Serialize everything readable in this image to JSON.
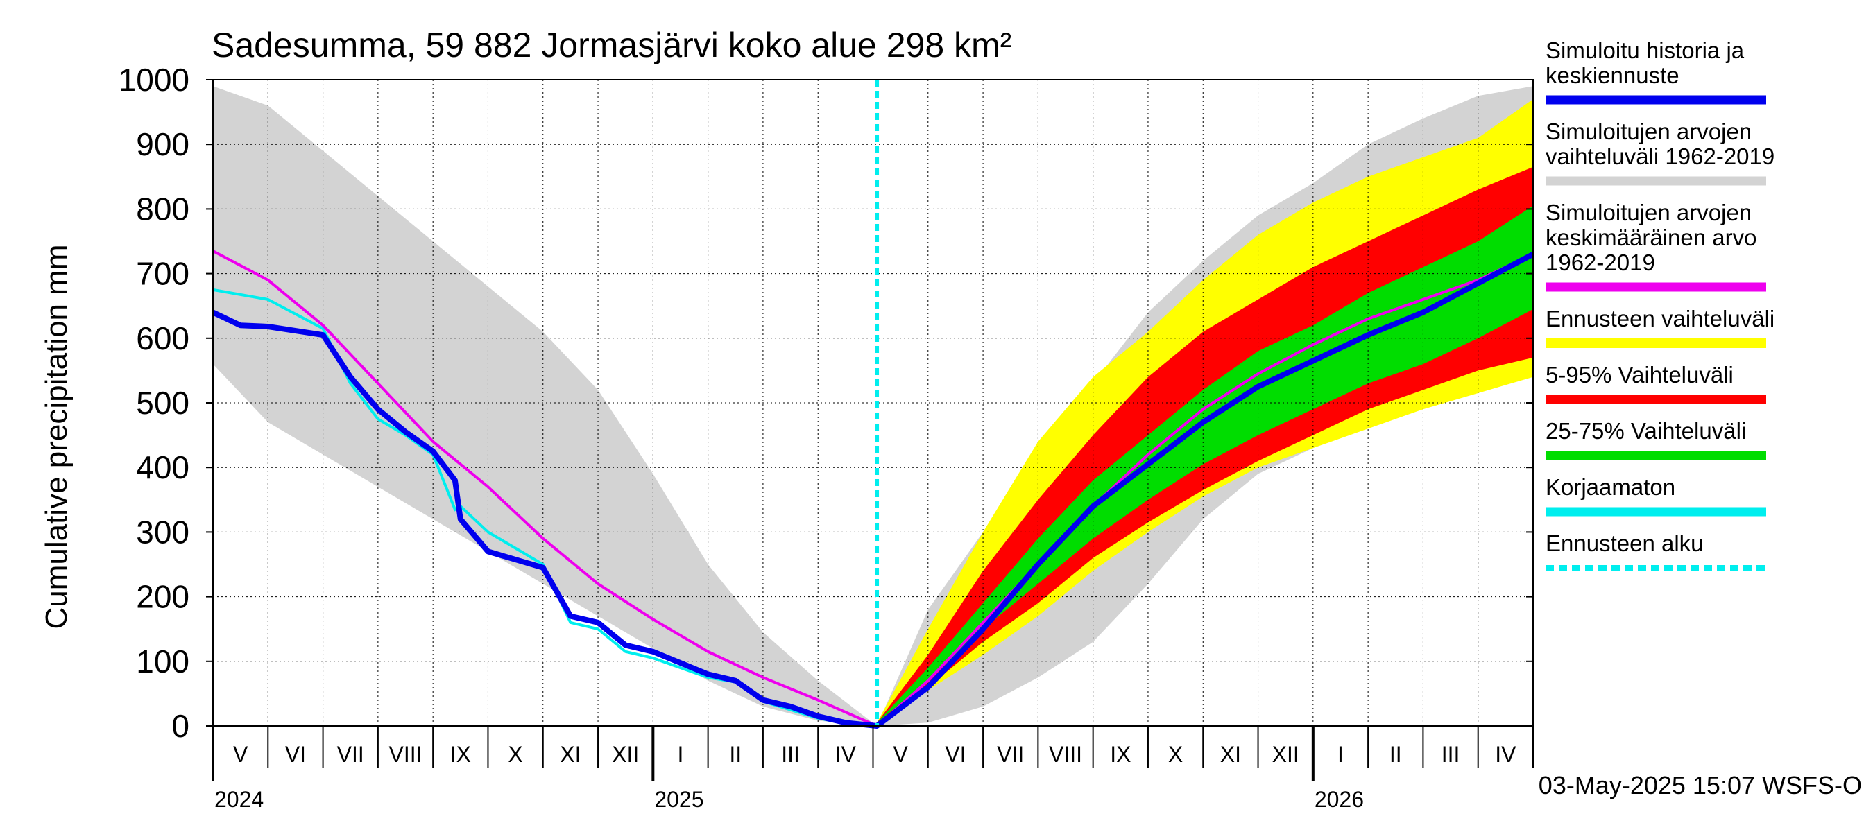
{
  "chart_data": {
    "type": "area",
    "title": "Sadesumma, 59 882 Jormasjärvi koko alue 298 km²",
    "ylabel": "Cumulative precipitation   mm",
    "ylim": [
      0,
      1000
    ],
    "yticks": [
      0,
      100,
      200,
      300,
      400,
      500,
      600,
      700,
      800,
      900,
      1000
    ],
    "x_unit": "months since 2024-05-01",
    "xlim": [
      0,
      24
    ],
    "forecast_start": 12.07,
    "month_labels": [
      "V",
      "VI",
      "VII",
      "VIII",
      "IX",
      "X",
      "XI",
      "XII",
      "I",
      "II",
      "III",
      "IV",
      "V",
      "VI",
      "VII",
      "VIII",
      "IX",
      "X",
      "XI",
      "XII",
      "I",
      "II",
      "III",
      "IV"
    ],
    "year_labels": [
      {
        "label": "2024",
        "x": 0
      },
      {
        "label": "2025",
        "x": 8
      },
      {
        "label": "2026",
        "x": 20
      }
    ],
    "timestamp": "03-May-2025 15:07 WSFS-O",
    "legend": [
      {
        "label": "Simuloitu historia ja keskiennuste",
        "lines": [
          "Simuloitu historia ja",
          "keskiennuste"
        ],
        "color": "#0000ee",
        "style": "line"
      },
      {
        "label": "Simuloitujen arvojen vaihteluväli 1962-2019",
        "lines": [
          "Simuloitujen arvojen",
          "vaihteluväli 1962-2019"
        ],
        "color": "#d3d3d3",
        "style": "line"
      },
      {
        "label": "Simuloitujen arvojen keskimääräinen arvo 1962-2019",
        "lines": [
          "Simuloitujen arvojen",
          "keskimääräinen arvo",
          "   1962-2019"
        ],
        "color": "#ee00ee",
        "style": "line"
      },
      {
        "label": "Ennusteen vaihteluväli",
        "lines": [
          "Ennusteen vaihteluväli"
        ],
        "color": "#ffff00",
        "style": "line"
      },
      {
        "label": "5-95% Vaihteluväli",
        "lines": [
          "5-95% Vaihteluväli"
        ],
        "color": "#ff0000",
        "style": "line"
      },
      {
        "label": "25-75% Vaihteluväli",
        "lines": [
          "25-75% Vaihteluväli"
        ],
        "color": "#00dd00",
        "style": "line"
      },
      {
        "label": "Korjaamaton",
        "lines": [
          "Korjaamaton"
        ],
        "color": "#00eeee",
        "style": "line"
      },
      {
        "label": "Ennusteen alku",
        "lines": [
          "Ennusteen alku"
        ],
        "color": "#00eeee",
        "style": "dashed"
      }
    ],
    "series": {
      "hist_range": {
        "name": "Simuloitujen arvojen vaihteluväli 1962-2019",
        "x": [
          0,
          1,
          2,
          3,
          4,
          5,
          6,
          7,
          8,
          9,
          10,
          11,
          12.07,
          13,
          14,
          15,
          16,
          17,
          18,
          19,
          20,
          21,
          22,
          23,
          24
        ],
        "upper": [
          990,
          960,
          890,
          820,
          750,
          680,
          610,
          520,
          390,
          250,
          145,
          70,
          0,
          180,
          300,
          400,
          530,
          640,
          720,
          790,
          840,
          900,
          940,
          975,
          990
        ],
        "lower": [
          560,
          470,
          420,
          370,
          320,
          270,
          220,
          170,
          120,
          70,
          30,
          8,
          0,
          5,
          30,
          75,
          130,
          220,
          320,
          390,
          430,
          470,
          500,
          525,
          545
        ]
      },
      "forecast_range": {
        "name": "Ennusteen vaihteluväli",
        "x": [
          12.07,
          13,
          14,
          15,
          16,
          17,
          18,
          19,
          20,
          21,
          22,
          23,
          24
        ],
        "upper": [
          5,
          150,
          300,
          440,
          540,
          610,
          690,
          760,
          810,
          850,
          880,
          910,
          970
        ],
        "lower": [
          5,
          55,
          110,
          170,
          240,
          300,
          355,
          400,
          430,
          460,
          490,
          515,
          540
        ]
      },
      "p5_95": {
        "name": "5-95% Vaihteluväli",
        "x": [
          12.07,
          13,
          14,
          15,
          16,
          17,
          18,
          19,
          20,
          21,
          22,
          23,
          24
        ],
        "upper": [
          5,
          110,
          240,
          350,
          450,
          540,
          610,
          660,
          710,
          750,
          790,
          830,
          865
        ],
        "lower": [
          5,
          60,
          130,
          190,
          260,
          315,
          365,
          410,
          450,
          490,
          520,
          550,
          570
        ]
      },
      "p25_75": {
        "name": "25-75% Vaihteluväli",
        "x": [
          12.07,
          13,
          14,
          15,
          16,
          17,
          18,
          19,
          20,
          21,
          22,
          23,
          24
        ],
        "upper": [
          5,
          90,
          190,
          290,
          380,
          450,
          520,
          580,
          620,
          670,
          710,
          750,
          805
        ],
        "lower": [
          5,
          70,
          150,
          220,
          290,
          350,
          405,
          450,
          490,
          530,
          560,
          600,
          645
        ]
      },
      "mean": {
        "name": "Simuloitujen arvojen keskimääräinen arvo 1962-2019",
        "x": [
          0,
          1,
          2,
          3,
          4,
          5,
          6,
          7,
          8,
          9,
          10,
          11,
          12.07,
          13,
          14,
          15,
          16,
          17,
          18,
          19,
          20,
          21,
          22,
          23,
          24
        ],
        "y": [
          735,
          690,
          620,
          530,
          440,
          370,
          290,
          220,
          165,
          115,
          75,
          40,
          0,
          70,
          160,
          250,
          340,
          420,
          490,
          545,
          590,
          630,
          660,
          690,
          730
        ]
      },
      "sim_history": {
        "name": "Simuloitu historia ja keskiennuste",
        "x": [
          0,
          0.5,
          1,
          2,
          2.5,
          3,
          3.5,
          4,
          4.4,
          4.5,
          5,
          6,
          6.5,
          7,
          7.5,
          8,
          9,
          9.5,
          10,
          10.5,
          11,
          11.5,
          12.07,
          13,
          14,
          15,
          16,
          17,
          18,
          19,
          20,
          21,
          22,
          23,
          24
        ],
        "y": [
          640,
          620,
          618,
          605,
          540,
          490,
          455,
          425,
          380,
          320,
          270,
          245,
          170,
          160,
          125,
          115,
          80,
          70,
          40,
          30,
          15,
          5,
          0,
          60,
          150,
          250,
          340,
          405,
          470,
          525,
          565,
          605,
          640,
          685,
          730
        ]
      },
      "uncorrected": {
        "name": "Korjaamaton",
        "x": [
          0,
          1,
          2,
          2.5,
          3,
          3.5,
          4,
          4.4,
          4.5,
          5,
          6,
          6.5,
          7,
          7.5,
          8,
          9,
          9.5,
          10,
          10.5,
          11,
          11.5,
          12.07
        ],
        "y": [
          675,
          660,
          615,
          530,
          475,
          450,
          420,
          335,
          340,
          300,
          250,
          160,
          150,
          115,
          105,
          75,
          68,
          38,
          25,
          12,
          4,
          0
        ]
      }
    }
  }
}
